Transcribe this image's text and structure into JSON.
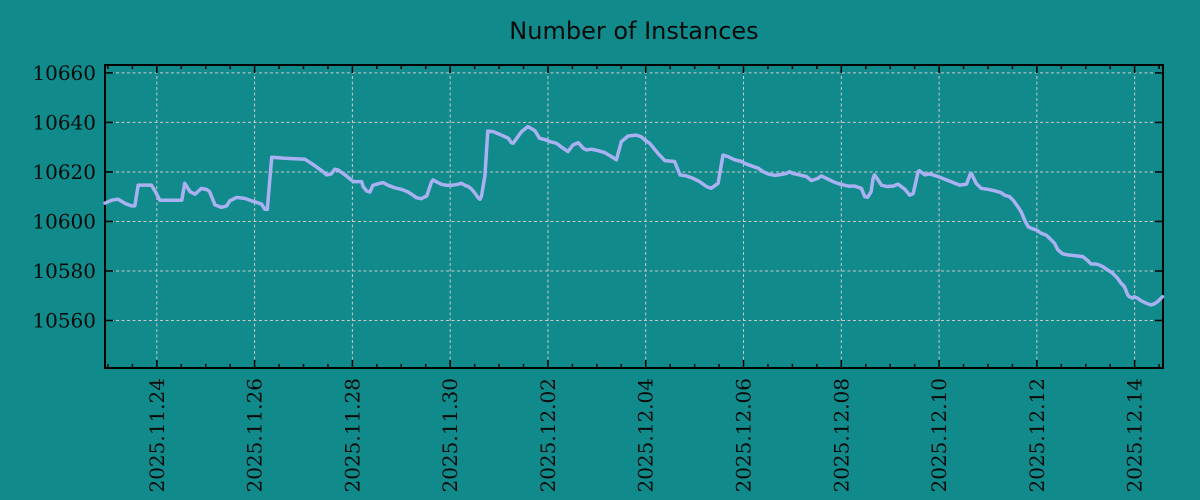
{
  "title": "Number of Instances",
  "colors": {
    "background": "#108a8a",
    "line": "#a9b1f2",
    "grid": "#c9c9c9",
    "axis": "#000000",
    "text": "#0a0a0a"
  },
  "chart_data": {
    "type": "line",
    "title": "Number of Instances",
    "xlabel": "",
    "ylabel": "",
    "legend": null,
    "grid": true,
    "grid_style": "dashed",
    "x_unit": "days since 2025-11-24 00:00",
    "xlim": [
      -1.06,
      20.58
    ],
    "ylim": [
      10540.8,
      10663.2
    ],
    "x_minor_step": 0.5,
    "x_ticks": [
      {
        "d": 0,
        "label": "2025.11.24"
      },
      {
        "d": 2,
        "label": "2025.11.26"
      },
      {
        "d": 4,
        "label": "2025.11.28"
      },
      {
        "d": 6,
        "label": "2025.11.30"
      },
      {
        "d": 8,
        "label": "2025.12.02"
      },
      {
        "d": 10,
        "label": "2025.12.04"
      },
      {
        "d": 12,
        "label": "2025.12.06"
      },
      {
        "d": 14,
        "label": "2025.12.08"
      },
      {
        "d": 16,
        "label": "2025.12.10"
      },
      {
        "d": 18,
        "label": "2025.12.12"
      },
      {
        "d": 20,
        "label": "2025.12.14"
      }
    ],
    "y_ticks": [
      10560,
      10580,
      10600,
      10620,
      10640,
      10660
    ],
    "series": [
      {
        "name": "instances",
        "points": [
          [
            -1.06,
            10607.4
          ],
          [
            -0.92,
            10608.6
          ],
          [
            -0.79,
            10609.0
          ],
          [
            -0.65,
            10607.3
          ],
          [
            -0.52,
            10606.3
          ],
          [
            -0.45,
            10606.3
          ],
          [
            -0.38,
            10614.7
          ],
          [
            -0.11,
            10614.7
          ],
          [
            -0.04,
            10612.4
          ],
          [
            0.06,
            10608.6
          ],
          [
            0.51,
            10608.6
          ],
          [
            0.57,
            10615.4
          ],
          [
            0.68,
            10612.0
          ],
          [
            0.78,
            10611.0
          ],
          [
            0.91,
            10613.3
          ],
          [
            1.02,
            10612.9
          ],
          [
            1.08,
            10612.0
          ],
          [
            1.19,
            10606.7
          ],
          [
            1.32,
            10605.7
          ],
          [
            1.43,
            10606.3
          ],
          [
            1.49,
            10608.3
          ],
          [
            1.63,
            10609.7
          ],
          [
            1.8,
            10609.3
          ],
          [
            1.94,
            10608.3
          ],
          [
            2.04,
            10607.7
          ],
          [
            2.14,
            10607.0
          ],
          [
            2.21,
            10604.9
          ],
          [
            2.26,
            10604.9
          ],
          [
            2.35,
            10625.9
          ],
          [
            2.62,
            10625.5
          ],
          [
            3.03,
            10625.1
          ],
          [
            3.16,
            10623.5
          ],
          [
            3.3,
            10621.5
          ],
          [
            3.4,
            10620.1
          ],
          [
            3.47,
            10618.8
          ],
          [
            3.57,
            10619.2
          ],
          [
            3.64,
            10621.1
          ],
          [
            3.71,
            10620.8
          ],
          [
            3.85,
            10618.8
          ],
          [
            4.02,
            10616.1
          ],
          [
            4.19,
            10616.1
          ],
          [
            4.22,
            10614.1
          ],
          [
            4.29,
            10612.3
          ],
          [
            4.36,
            10611.9
          ],
          [
            4.42,
            10614.6
          ],
          [
            4.56,
            10615.4
          ],
          [
            4.63,
            10615.7
          ],
          [
            4.73,
            10614.6
          ],
          [
            4.87,
            10613.6
          ],
          [
            5.0,
            10613.0
          ],
          [
            5.14,
            10611.9
          ],
          [
            5.24,
            10610.6
          ],
          [
            5.31,
            10609.6
          ],
          [
            5.41,
            10609.2
          ],
          [
            5.52,
            10610.3
          ],
          [
            5.62,
            10616.0
          ],
          [
            5.65,
            10616.8
          ],
          [
            5.72,
            10616.0
          ],
          [
            5.82,
            10615.0
          ],
          [
            5.92,
            10614.6
          ],
          [
            6.03,
            10614.6
          ],
          [
            6.16,
            10615.0
          ],
          [
            6.23,
            10615.4
          ],
          [
            6.3,
            10614.6
          ],
          [
            6.37,
            10614.1
          ],
          [
            6.44,
            10613.0
          ],
          [
            6.5,
            10611.6
          ],
          [
            6.57,
            10609.6
          ],
          [
            6.61,
            10609.0
          ],
          [
            6.64,
            10610.3
          ],
          [
            6.71,
            10618.4
          ],
          [
            6.77,
            10636.5
          ],
          [
            6.88,
            10636.3
          ],
          [
            7.05,
            10634.9
          ],
          [
            7.19,
            10633.6
          ],
          [
            7.25,
            10631.8
          ],
          [
            7.29,
            10631.6
          ],
          [
            7.46,
            10636.3
          ],
          [
            7.59,
            10638.3
          ],
          [
            7.73,
            10636.7
          ],
          [
            7.83,
            10633.6
          ],
          [
            7.97,
            10632.9
          ],
          [
            8.04,
            10632.2
          ],
          [
            8.17,
            10631.6
          ],
          [
            8.28,
            10630.0
          ],
          [
            8.41,
            10628.2
          ],
          [
            8.51,
            10630.9
          ],
          [
            8.62,
            10631.8
          ],
          [
            8.72,
            10629.6
          ],
          [
            8.79,
            10628.9
          ],
          [
            8.89,
            10629.2
          ],
          [
            9.03,
            10628.6
          ],
          [
            9.16,
            10627.8
          ],
          [
            9.3,
            10626.2
          ],
          [
            9.4,
            10624.9
          ],
          [
            9.5,
            10632.2
          ],
          [
            9.64,
            10634.5
          ],
          [
            9.81,
            10634.9
          ],
          [
            9.91,
            10634.2
          ],
          [
            9.98,
            10632.9
          ],
          [
            10.08,
            10631.6
          ],
          [
            10.25,
            10627.5
          ],
          [
            10.39,
            10624.6
          ],
          [
            10.59,
            10624.2
          ],
          [
            10.7,
            10618.8
          ],
          [
            10.83,
            10618.4
          ],
          [
            10.97,
            10617.4
          ],
          [
            11.1,
            10616.1
          ],
          [
            11.24,
            10614.1
          ],
          [
            11.34,
            10613.4
          ],
          [
            11.48,
            10615.4
          ],
          [
            11.58,
            10626.8
          ],
          [
            11.68,
            10626.2
          ],
          [
            11.82,
            10624.9
          ],
          [
            11.96,
            10624.2
          ],
          [
            12.02,
            10623.5
          ],
          [
            12.16,
            10622.5
          ],
          [
            12.3,
            10621.5
          ],
          [
            12.4,
            10620.1
          ],
          [
            12.5,
            10619.2
          ],
          [
            12.64,
            10618.6
          ],
          [
            12.78,
            10619.0
          ],
          [
            12.88,
            10619.4
          ],
          [
            12.94,
            10620.1
          ],
          [
            13.01,
            10619.4
          ],
          [
            13.15,
            10618.8
          ],
          [
            13.29,
            10618.1
          ],
          [
            13.39,
            10616.5
          ],
          [
            13.52,
            10617.4
          ],
          [
            13.59,
            10618.4
          ],
          [
            13.7,
            10617.4
          ],
          [
            13.83,
            10616.1
          ],
          [
            13.97,
            10615.1
          ],
          [
            14.14,
            10614.3
          ],
          [
            14.27,
            10614.3
          ],
          [
            14.41,
            10613.4
          ],
          [
            14.48,
            10610.0
          ],
          [
            14.54,
            10609.8
          ],
          [
            14.61,
            10612.0
          ],
          [
            14.65,
            10617.4
          ],
          [
            14.68,
            10618.8
          ],
          [
            14.75,
            10616.8
          ],
          [
            14.82,
            10614.7
          ],
          [
            14.92,
            10614.1
          ],
          [
            15.06,
            10614.3
          ],
          [
            15.16,
            10615.1
          ],
          [
            15.3,
            10613.0
          ],
          [
            15.4,
            10610.6
          ],
          [
            15.47,
            10611.3
          ],
          [
            15.57,
            10620.1
          ],
          [
            15.6,
            10620.5
          ],
          [
            15.71,
            10618.8
          ],
          [
            15.81,
            10619.2
          ],
          [
            15.98,
            10618.1
          ],
          [
            16.15,
            10616.8
          ],
          [
            16.29,
            10615.7
          ],
          [
            16.42,
            10614.7
          ],
          [
            16.56,
            10615.1
          ],
          [
            16.63,
            10618.8
          ],
          [
            16.66,
            10619.4
          ],
          [
            16.76,
            10615.4
          ],
          [
            16.86,
            10613.4
          ],
          [
            17.0,
            10613.0
          ],
          [
            17.14,
            10612.4
          ],
          [
            17.27,
            10611.6
          ],
          [
            17.34,
            10610.6
          ],
          [
            17.44,
            10610.0
          ],
          [
            17.51,
            10608.7
          ],
          [
            17.61,
            10606.0
          ],
          [
            17.68,
            10603.9
          ],
          [
            17.75,
            10600.6
          ],
          [
            17.82,
            10597.9
          ],
          [
            17.89,
            10597.2
          ],
          [
            17.99,
            10596.6
          ],
          [
            18.09,
            10595.2
          ],
          [
            18.19,
            10594.5
          ],
          [
            18.26,
            10593.2
          ],
          [
            18.36,
            10591.2
          ],
          [
            18.43,
            10588.5
          ],
          [
            18.53,
            10586.9
          ],
          [
            18.63,
            10586.5
          ],
          [
            18.81,
            10586.1
          ],
          [
            18.94,
            10585.8
          ],
          [
            19.04,
            10584.2
          ],
          [
            19.11,
            10582.8
          ],
          [
            19.21,
            10582.8
          ],
          [
            19.28,
            10582.4
          ],
          [
            19.35,
            10581.7
          ],
          [
            19.45,
            10580.4
          ],
          [
            19.55,
            10579.1
          ],
          [
            19.65,
            10577.1
          ],
          [
            19.72,
            10575.1
          ],
          [
            19.79,
            10573.7
          ],
          [
            19.86,
            10570.3
          ],
          [
            19.89,
            10569.6
          ],
          [
            19.96,
            10569.0
          ],
          [
            19.99,
            10569.6
          ],
          [
            20.06,
            10569.0
          ],
          [
            20.13,
            10568.0
          ],
          [
            20.23,
            10567.0
          ],
          [
            20.33,
            10566.3
          ],
          [
            20.4,
            10566.7
          ],
          [
            20.47,
            10567.6
          ],
          [
            20.54,
            10569.0
          ],
          [
            20.57,
            10569.6
          ]
        ]
      }
    ]
  }
}
